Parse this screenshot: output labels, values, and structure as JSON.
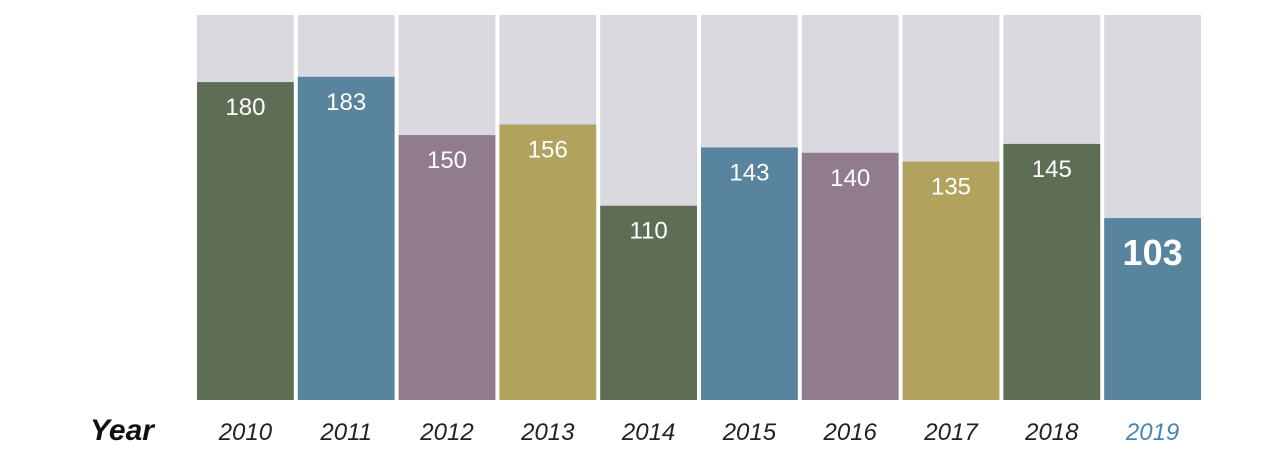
{
  "chart_data": {
    "type": "bar",
    "xlabel": "Year",
    "categories": [
      "2010",
      "2011",
      "2012",
      "2013",
      "2014",
      "2015",
      "2016",
      "2017",
      "2018",
      "2019"
    ],
    "values": [
      180,
      183,
      150,
      156,
      110,
      143,
      140,
      135,
      145,
      103
    ],
    "ylim": [
      0,
      218
    ],
    "highlight_category": "2019",
    "grid": false,
    "colors": {
      "background_column": "#d9d9df",
      "bars": [
        "#5e6e55",
        "#58849e",
        "#917c8d",
        "#b1a35d",
        "#5e6e55",
        "#58849e",
        "#917c8d",
        "#b1a35d",
        "#5e6e55",
        "#58849e"
      ],
      "value_label": "#ffffff",
      "tick_label": "#222222",
      "highlight_tick_label": "#4a86b3"
    }
  }
}
